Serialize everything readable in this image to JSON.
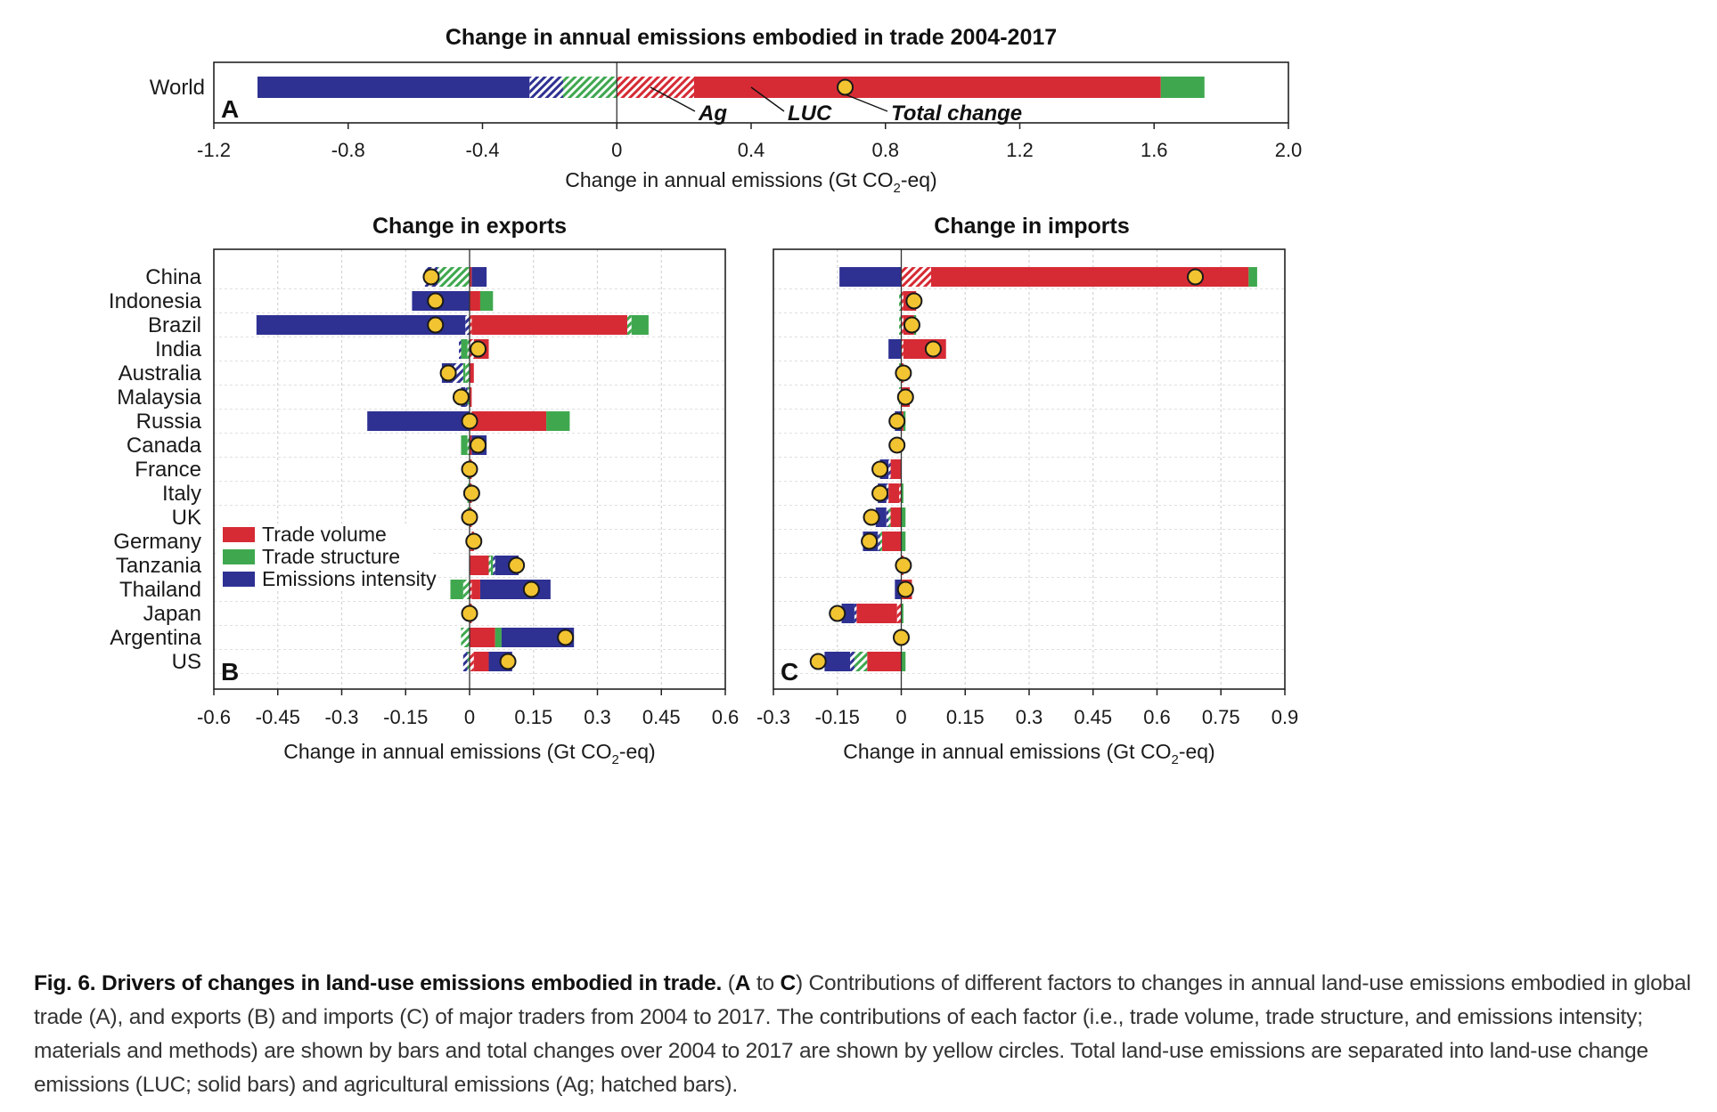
{
  "colors": {
    "trade_volume": "#d62b35",
    "trade_structure": "#3fa84f",
    "emissions_intensity": "#2e3192",
    "total": "#f3c431"
  },
  "chart_data": [
    {
      "id": "A",
      "panel_letter": "A",
      "type": "bar",
      "orientation": "horizontal",
      "stacking": "diverging",
      "title": "Change in annual emissions embodied in trade 2004-2017",
      "xlabel_main": "Change in annual emissions (Gt CO",
      "xlabel_sub": "2",
      "xlabel_end": "-eq)",
      "xlim": [
        -1.2,
        2.0
      ],
      "xticks": [
        "-1.2",
        "-0.8",
        "-0.4",
        "0",
        "0.4",
        "0.8",
        "1.2",
        "1.6",
        "2.0"
      ],
      "grid": false,
      "categories": [
        "World"
      ],
      "series": [
        {
          "factor": "trade_volume",
          "component": "Ag",
          "hatched": true,
          "values": [
            0.23
          ]
        },
        {
          "factor": "trade_volume",
          "component": "LUC",
          "hatched": false,
          "values": [
            1.39
          ]
        },
        {
          "factor": "trade_structure",
          "component": "Ag",
          "hatched": true,
          "values": [
            -0.16
          ]
        },
        {
          "factor": "trade_structure",
          "component": "LUC",
          "hatched": false,
          "values": [
            0.13
          ]
        },
        {
          "factor": "emissions_intensity",
          "component": "Ag",
          "hatched": true,
          "values": [
            -0.1
          ]
        },
        {
          "factor": "emissions_intensity",
          "component": "LUC",
          "hatched": false,
          "values": [
            -0.81
          ]
        }
      ],
      "total": [
        0.68
      ],
      "annotations": [
        {
          "text": "Ag",
          "target_x": 0.1
        },
        {
          "text": "LUC",
          "target_x": 0.4
        },
        {
          "text": "Total change",
          "target_x": 0.68
        }
      ]
    },
    {
      "id": "B",
      "panel_letter": "B",
      "type": "bar",
      "orientation": "horizontal",
      "stacking": "diverging",
      "title": "Change in exports",
      "xlabel_main": "Change in annual emissions (Gt CO",
      "xlabel_sub": "2",
      "xlabel_end": "-eq)",
      "xlim": [
        -0.6,
        0.6
      ],
      "xticks": [
        "-0.6",
        "-0.45",
        "-0.3",
        "-0.15",
        "0",
        "0.15",
        "0.3",
        "0.45",
        "0.6"
      ],
      "grid": true,
      "categories": [
        "China",
        "Indonesia",
        "Brazil",
        "India",
        "Australia",
        "Malaysia",
        "Russia",
        "Canada",
        "France",
        "Italy",
        "UK",
        "Germany",
        "Tanzania",
        "Thailand",
        "Japan",
        "Argentina",
        "US"
      ],
      "series": [
        {
          "factor": "trade_volume",
          "component": "Ag",
          "hatched": true,
          "values": [
            0,
            0,
            0.005,
            0.01,
            0,
            0,
            0.005,
            0,
            0,
            0,
            0,
            0.005,
            0,
            0.005,
            0,
            0,
            0.01
          ]
        },
        {
          "factor": "trade_volume",
          "component": "LUC",
          "hatched": false,
          "values": [
            0.005,
            0.025,
            0.365,
            0.035,
            0.01,
            0.005,
            0.175,
            0.005,
            0.005,
            0.005,
            0.005,
            0.005,
            0.045,
            0.02,
            0.005,
            0.06,
            0.035
          ]
        },
        {
          "factor": "trade_structure",
          "component": "Ag",
          "hatched": true,
          "values": [
            -0.075,
            0,
            0.01,
            -0.005,
            -0.01,
            -0.005,
            0,
            -0.005,
            -0.005,
            -0.005,
            -0.005,
            0,
            0.005,
            -0.015,
            0,
            -0.02,
            -0.005
          ]
        },
        {
          "factor": "trade_structure",
          "component": "LUC",
          "hatched": false,
          "values": [
            0,
            0.03,
            0.04,
            -0.015,
            -0.005,
            0,
            0.055,
            -0.015,
            0,
            0,
            0,
            0,
            0.005,
            -0.03,
            0,
            0.015,
            0
          ]
        },
        {
          "factor": "emissions_intensity",
          "component": "Ag",
          "hatched": true,
          "values": [
            -0.03,
            0,
            -0.01,
            -0.005,
            -0.025,
            -0.005,
            0,
            0,
            0,
            0,
            0,
            0,
            0.005,
            0,
            0,
            0,
            -0.01
          ]
        },
        {
          "factor": "emissions_intensity",
          "component": "LUC",
          "hatched": false,
          "values": [
            0.035,
            -0.135,
            -0.49,
            0,
            -0.025,
            -0.01,
            -0.24,
            0.035,
            0,
            0,
            0,
            0,
            0.055,
            0.165,
            0,
            0.17,
            0.055
          ]
        }
      ],
      "total": [
        -0.09,
        -0.08,
        -0.08,
        0.02,
        -0.05,
        -0.02,
        0.0,
        0.02,
        0.0,
        0.005,
        0.0,
        0.01,
        0.11,
        0.145,
        0.0,
        0.225,
        0.09
      ],
      "legend": {
        "placement": "left-lower",
        "entries": [
          {
            "label": "Trade volume",
            "factor": "trade_volume"
          },
          {
            "label": "Trade structure",
            "factor": "trade_structure"
          },
          {
            "label": "Emissions intensity",
            "factor": "emissions_intensity"
          }
        ]
      }
    },
    {
      "id": "C",
      "panel_letter": "C",
      "type": "bar",
      "orientation": "horizontal",
      "stacking": "diverging",
      "title": "Change in imports",
      "xlabel_main": "Change in annual emissions (Gt CO",
      "xlabel_sub": "2",
      "xlabel_end": "-eq)",
      "xlim": [
        -0.3,
        0.9
      ],
      "xticks": [
        "-0.3",
        "-0.15",
        "0",
        "0.15",
        "0.3",
        "0.45",
        "0.6",
        "0.75",
        "0.9"
      ],
      "grid": true,
      "categories": [
        "China",
        "Indonesia",
        "Brazil",
        "India",
        "Australia",
        "Malaysia",
        "Russia",
        "Canada",
        "France",
        "Italy",
        "UK",
        "Germany",
        "Tanzania",
        "Thailand",
        "Japan",
        "Argentina",
        "US"
      ],
      "series": [
        {
          "factor": "trade_volume",
          "component": "Ag",
          "hatched": true,
          "values": [
            0.07,
            0.005,
            0.005,
            0.005,
            0,
            0,
            0,
            0,
            0,
            -0.005,
            0,
            0,
            0,
            0,
            -0.01,
            0,
            0
          ]
        },
        {
          "factor": "trade_volume",
          "component": "LUC",
          "hatched": false,
          "values": [
            0.745,
            0.03,
            0.025,
            0.1,
            0.005,
            0.02,
            0.005,
            0,
            -0.025,
            -0.025,
            -0.025,
            -0.045,
            0.005,
            0.025,
            -0.095,
            0,
            -0.08
          ]
        },
        {
          "factor": "trade_structure",
          "component": "Ag",
          "hatched": true,
          "values": [
            0,
            -0.005,
            -0.005,
            0,
            -0.005,
            -0.005,
            0,
            0,
            0,
            0,
            -0.005,
            -0.005,
            0,
            0,
            0,
            0,
            -0.03
          ]
        },
        {
          "factor": "trade_structure",
          "component": "LUC",
          "hatched": false,
          "values": [
            0.02,
            0,
            0.005,
            0,
            0,
            0,
            0.005,
            0,
            0,
            0.005,
            0.01,
            0.01,
            0,
            0,
            0.005,
            0,
            0.01
          ]
        },
        {
          "factor": "emissions_intensity",
          "component": "Ag",
          "hatched": true,
          "values": [
            0,
            0,
            0,
            0,
            0,
            0,
            0,
            0,
            -0.005,
            -0.005,
            -0.005,
            -0.005,
            0,
            0,
            -0.005,
            0,
            -0.01
          ]
        },
        {
          "factor": "emissions_intensity",
          "component": "LUC",
          "hatched": false,
          "values": [
            -0.145,
            0,
            0,
            -0.03,
            0,
            0,
            -0.015,
            0,
            -0.02,
            -0.02,
            -0.025,
            -0.035,
            0,
            -0.015,
            -0.03,
            0,
            -0.06
          ]
        }
      ],
      "total": [
        0.69,
        0.03,
        0.025,
        0.075,
        0.005,
        0.01,
        -0.01,
        -0.01,
        -0.05,
        -0.05,
        -0.07,
        -0.075,
        0.005,
        0.01,
        -0.15,
        0.0,
        -0.195
      ]
    }
  ],
  "caption": {
    "fig_label": "Fig. 6. Drivers of changes in land-use emissions embodied in trade.",
    "paren_open": " (",
    "letter_a": "A",
    "to_word": " to ",
    "letter_c": "C",
    "text": ") Contributions of different factors to changes in annual land-use emissions embodied in global trade (A), and exports (B) and imports (C) of major traders from 2004 to 2017. The contributions of each factor (i.e., trade volume, trade structure, and emissions intensity; materials and methods) are shown by bars and total changes over 2004 to 2017 are shown by yellow circles. Total land-use emissions are separated into land-use change emissions (LUC; solid bars) and agricultural emissions (Ag; hatched bars)."
  }
}
